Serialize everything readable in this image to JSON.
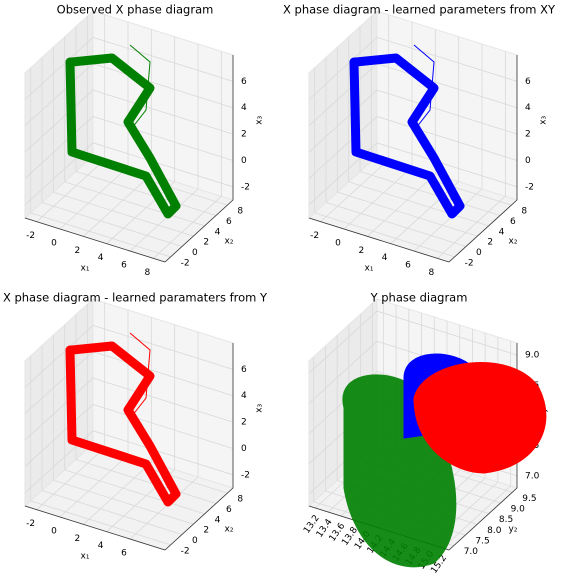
{
  "chart_data": [
    {
      "type": "line3d",
      "title": "Observed X phase diagram",
      "color": "green",
      "xlabel": "x₁",
      "ylabel": "x₂",
      "zlabel": "x₃",
      "xlim": [
        -3,
        9
      ],
      "ylim": [
        -3,
        9
      ],
      "zlim": [
        -3,
        8
      ],
      "xticks": [
        -2,
        0,
        2,
        4,
        6,
        8
      ],
      "yticks": [
        -2,
        0,
        2,
        4,
        6,
        8
      ],
      "zticks": [
        -2,
        0,
        2,
        4,
        6
      ],
      "grid": true
    },
    {
      "type": "line3d",
      "title": "X phase diagram - learned parameters from XY",
      "color": "blue",
      "xlabel": "x₁",
      "ylabel": "x₂",
      "zlabel": "x₃",
      "xlim": [
        -3,
        9
      ],
      "ylim": [
        -3,
        9
      ],
      "zlim": [
        -3,
        8
      ],
      "xticks": [
        -2,
        0,
        2,
        4,
        6,
        8
      ],
      "yticks": [
        -2,
        0,
        2,
        4,
        6,
        8
      ],
      "zticks": [
        -2,
        0,
        2,
        4,
        6
      ],
      "grid": true
    },
    {
      "type": "line3d",
      "title": "X phase diagram - learned paramaters from Y",
      "color": "red",
      "xlabel": "x₁",
      "ylabel": "x₂",
      "zlabel": "x₃",
      "xlim": [
        -3,
        9
      ],
      "ylim": [
        -3,
        9
      ],
      "zlim": [
        -3,
        8
      ],
      "xticks": [
        -2,
        0,
        2,
        4,
        6
      ],
      "yticks": [
        -2,
        0,
        2,
        4,
        6,
        8
      ],
      "zticks": [
        -2,
        0,
        2,
        4,
        6
      ],
      "grid": true
    },
    {
      "type": "blob3d",
      "title": "Y phase diagram",
      "colors": [
        "green",
        "blue",
        "red"
      ],
      "ylabel": "y₂",
      "zlabel": "y₃",
      "xlim": [
        13.1,
        15.3
      ],
      "ylim": [
        6.8,
        9.7
      ],
      "zlim": [
        6.8,
        9.2
      ],
      "xticks": [
        13.2,
        13.4,
        13.6,
        13.8,
        {
          "value": 14,
          "label": "14.0"
        },
        14.2,
        14.4,
        14.6,
        14.8,
        {
          "value": 15,
          "label": "15.0"
        },
        15.2
      ],
      "yticks": [
        {
          "value": 7,
          "label": "7.0"
        },
        7.5,
        {
          "value": 8,
          "label": "8.0"
        },
        8.5,
        {
          "value": 9,
          "label": "9.0"
        },
        9.5
      ],
      "zticks": [
        {
          "value": 7,
          "label": "7.0"
        },
        7.5,
        {
          "value": 8,
          "label": "8.0"
        },
        8.5,
        {
          "value": 9,
          "label": "9.0"
        }
      ],
      "grid": true
    }
  ]
}
